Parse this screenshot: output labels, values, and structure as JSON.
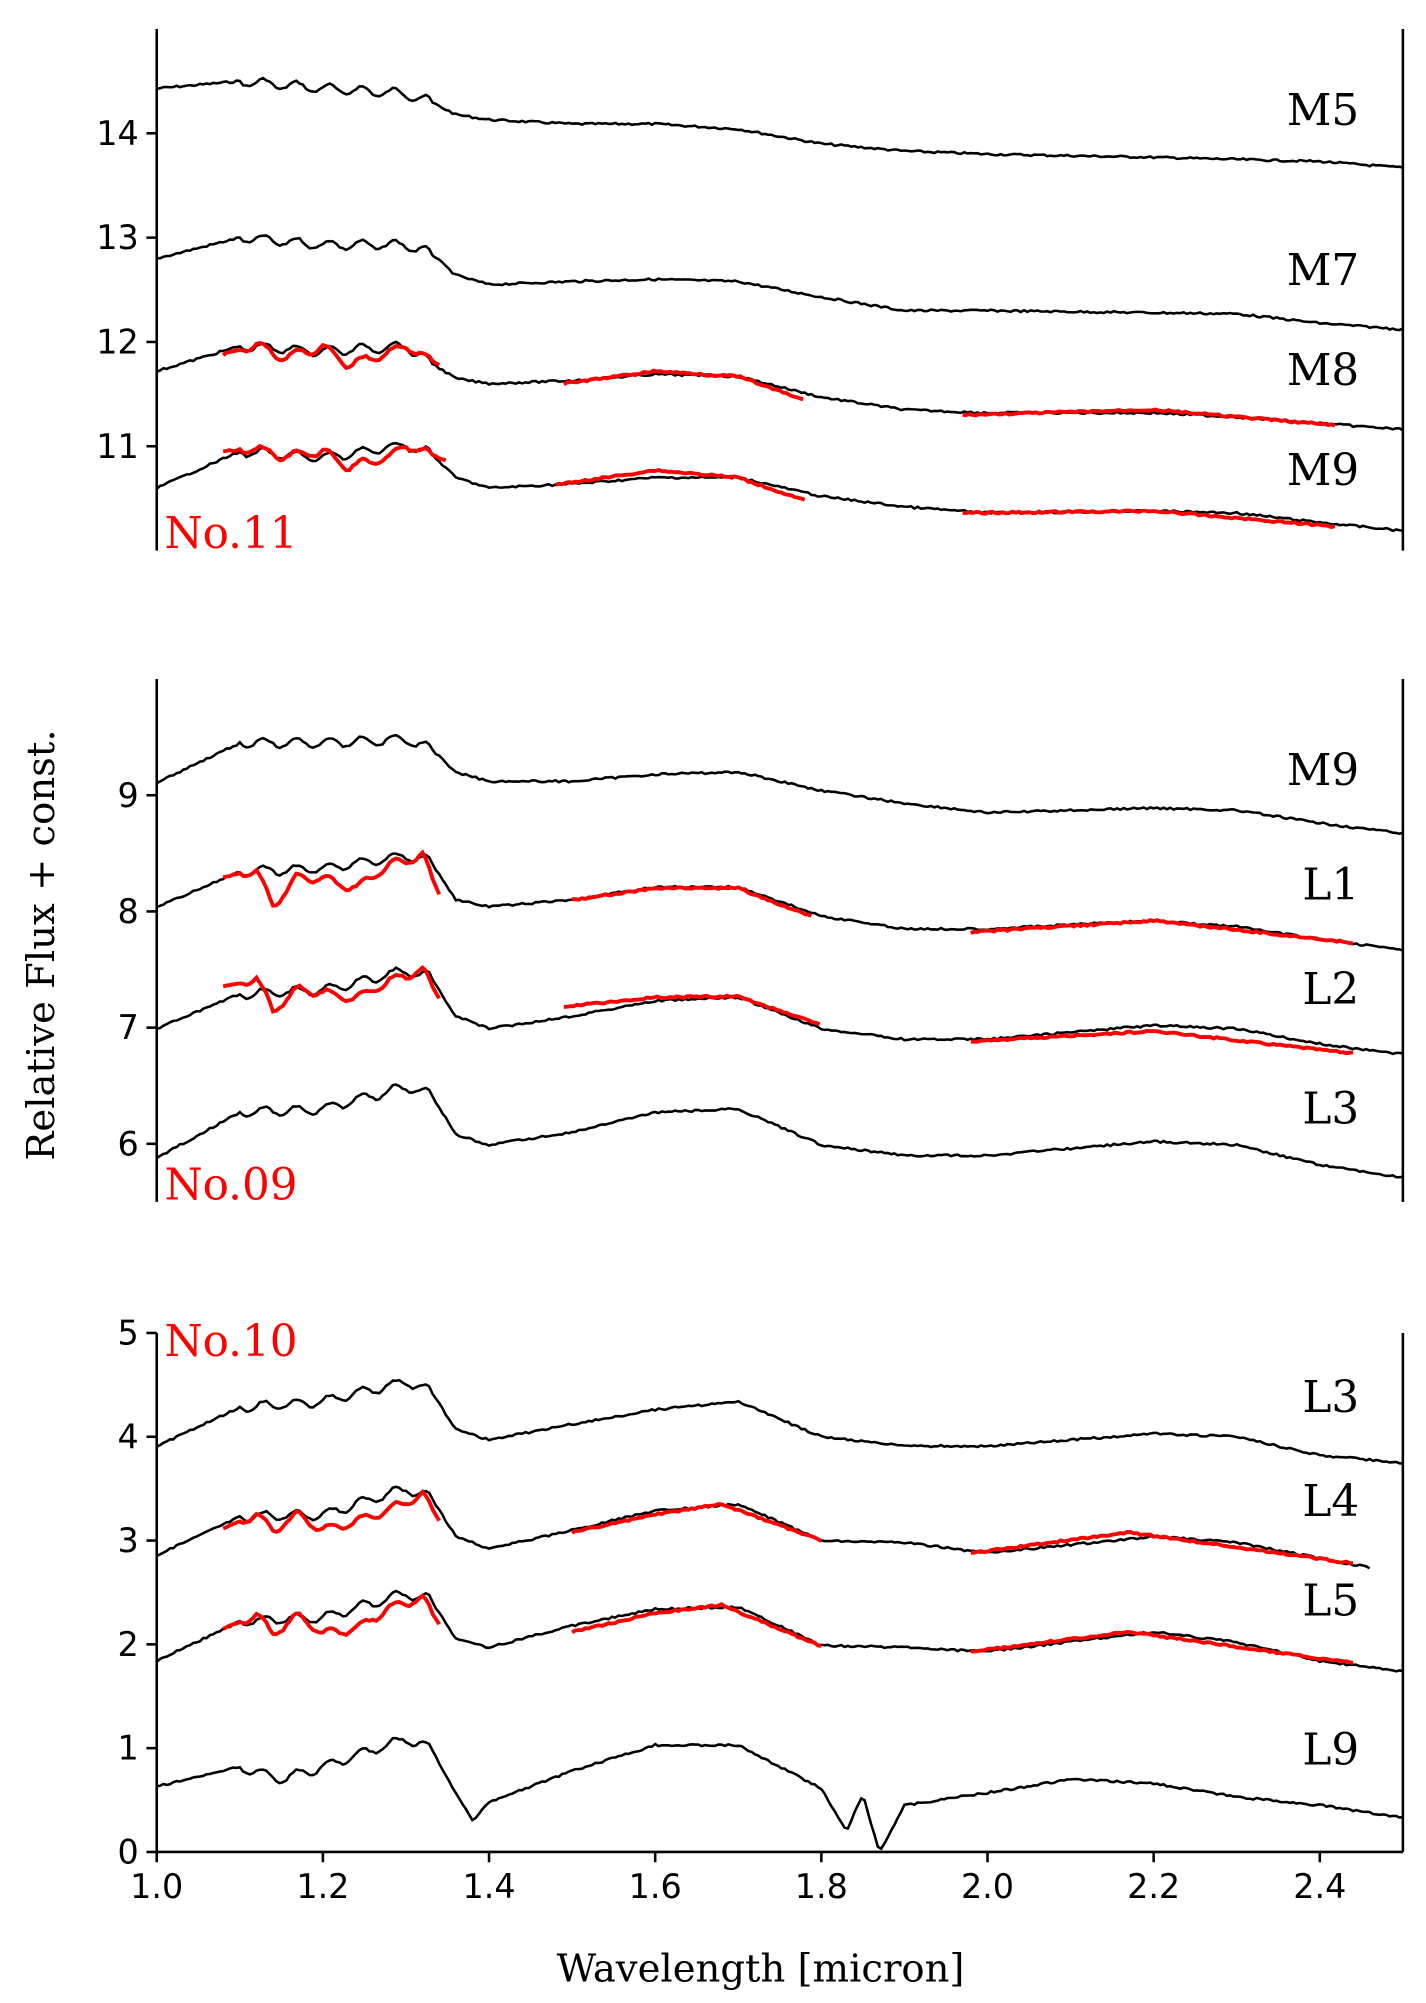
{
  "chart_data": {
    "type": "line",
    "ylabel": "Relative Flux + const.",
    "xlabel": "Wavelength [micron]",
    "xlim": [
      1.0,
      2.5
    ],
    "xticks": [
      "1.0",
      "1.2",
      "1.4",
      "1.6",
      "1.8",
      "2.0",
      "2.2",
      "2.4"
    ],
    "colors": {
      "template": "#000000",
      "object": "#ff0000"
    },
    "grid": false,
    "panels": [
      {
        "object_label": "No.11",
        "ylim": [
          10,
          15
        ],
        "yticks": [
          "11",
          "12",
          "13",
          "14"
        ],
        "templates": [
          {
            "name": "M5",
            "x": [
              1.0,
              1.1,
              1.2,
              1.3,
              1.33,
              1.36,
              1.4,
              1.5,
              1.6,
              1.7,
              1.8,
              1.9,
              2.0,
              2.2,
              2.4,
              2.5
            ],
            "y": [
              14.43,
              14.5,
              14.43,
              14.38,
              14.3,
              14.18,
              14.13,
              14.09,
              14.09,
              14.04,
              13.9,
              13.83,
              13.8,
              13.77,
              13.73,
              13.67
            ]
          },
          {
            "name": "M7",
            "x": [
              1.0,
              1.1,
              1.2,
              1.3,
              1.33,
              1.36,
              1.4,
              1.5,
              1.6,
              1.7,
              1.8,
              1.9,
              2.0,
              2.2,
              2.3,
              2.4,
              2.5
            ],
            "y": [
              12.8,
              13.0,
              12.93,
              12.93,
              12.85,
              12.64,
              12.55,
              12.58,
              12.6,
              12.58,
              12.43,
              12.3,
              12.3,
              12.28,
              12.27,
              12.18,
              12.12
            ]
          },
          {
            "name": "M8",
            "x": [
              1.0,
              1.1,
              1.2,
              1.3,
              1.33,
              1.36,
              1.4,
              1.5,
              1.6,
              1.7,
              1.8,
              1.9,
              2.0,
              2.2,
              2.3,
              2.4,
              2.5
            ],
            "y": [
              11.72,
              11.96,
              11.91,
              11.96,
              11.8,
              11.65,
              11.6,
              11.63,
              11.69,
              11.67,
              11.47,
              11.35,
              11.32,
              11.32,
              11.28,
              11.22,
              11.16
            ]
          },
          {
            "name": "M9",
            "x": [
              1.0,
              1.1,
              1.2,
              1.3,
              1.33,
              1.36,
              1.4,
              1.5,
              1.6,
              1.7,
              1.8,
              1.9,
              2.0,
              2.2,
              2.3,
              2.4,
              2.5
            ],
            "y": [
              10.6,
              10.95,
              10.89,
              11.01,
              10.93,
              10.7,
              10.6,
              10.64,
              10.7,
              10.7,
              10.52,
              10.42,
              10.36,
              10.38,
              10.36,
              10.27,
              10.19
            ]
          }
        ],
        "object": [
          {
            "template": "M8",
            "segments": [
              {
                "x": [
                  1.08,
                  1.12,
                  1.15,
                  1.2,
                  1.23,
                  1.28,
                  1.3,
                  1.34
                ],
                "y": [
                  11.88,
                  11.98,
                  11.85,
                  11.95,
                  11.78,
                  11.9,
                  11.96,
                  11.78
                ]
              },
              {
                "x": [
                  1.49,
                  1.6,
                  1.7,
                  1.78
                ],
                "y": [
                  11.6,
                  11.72,
                  11.67,
                  11.44
                ]
              },
              {
                "x": [
                  1.97,
                  2.2,
                  2.42
                ],
                "y": [
                  11.3,
                  11.35,
                  11.2
                ]
              }
            ]
          },
          {
            "template": "M9",
            "segments": [
              {
                "x": [
                  1.08,
                  1.12,
                  1.15,
                  1.2,
                  1.23,
                  1.28,
                  1.3,
                  1.35
                ],
                "y": [
                  10.95,
                  10.98,
                  10.9,
                  10.95,
                  10.8,
                  10.9,
                  11.01,
                  10.86
                ]
              },
              {
                "x": [
                  1.48,
                  1.6,
                  1.7,
                  1.78
                ],
                "y": [
                  10.63,
                  10.77,
                  10.7,
                  10.48
                ]
              },
              {
                "x": [
                  1.97,
                  2.2,
                  2.42
                ],
                "y": [
                  10.36,
                  10.38,
                  10.23
                ]
              }
            ]
          }
        ]
      },
      {
        "object_label": "No.09",
        "ylim": [
          5.5,
          10
        ],
        "yticks": [
          "6",
          "7",
          "8",
          "9"
        ],
        "templates": [
          {
            "name": "M9",
            "x": [
              1.0,
              1.1,
              1.2,
              1.3,
              1.33,
              1.36,
              1.4,
              1.5,
              1.6,
              1.7,
              1.8,
              1.9,
              2.0,
              2.2,
              2.3,
              2.4,
              2.5
            ],
            "y": [
              9.11,
              9.45,
              9.45,
              9.48,
              9.4,
              9.2,
              9.12,
              9.12,
              9.18,
              9.2,
              9.04,
              8.93,
              8.85,
              8.89,
              8.87,
              8.76,
              8.67
            ]
          },
          {
            "name": "L1",
            "x": [
              1.0,
              1.1,
              1.2,
              1.3,
              1.33,
              1.36,
              1.4,
              1.5,
              1.6,
              1.7,
              1.8,
              1.9,
              2.0,
              2.2,
              2.3,
              2.4,
              2.5
            ],
            "y": [
              8.04,
              8.34,
              8.37,
              8.48,
              8.43,
              8.1,
              8.04,
              8.1,
              8.21,
              8.21,
              7.96,
              7.85,
              7.85,
              7.92,
              7.87,
              7.76,
              7.67
            ]
          },
          {
            "name": "L2",
            "x": [
              1.0,
              1.1,
              1.2,
              1.3,
              1.33,
              1.36,
              1.4,
              1.5,
              1.6,
              1.7,
              1.8,
              1.9,
              2.0,
              2.2,
              2.3,
              2.4,
              2.5
            ],
            "y": [
              6.99,
              7.29,
              7.32,
              7.49,
              7.43,
              7.1,
              6.99,
              7.1,
              7.23,
              7.26,
              6.99,
              6.9,
              6.9,
              7.02,
              6.99,
              6.86,
              6.77
            ]
          },
          {
            "name": "L3",
            "x": [
              1.0,
              1.1,
              1.2,
              1.3,
              1.33,
              1.36,
              1.4,
              1.5,
              1.6,
              1.7,
              1.8,
              1.9,
              2.0,
              2.2,
              2.3,
              2.4,
              2.5
            ],
            "y": [
              5.88,
              6.27,
              6.3,
              6.49,
              6.43,
              6.08,
              5.99,
              6.1,
              6.27,
              6.3,
              5.99,
              5.9,
              5.9,
              6.02,
              5.99,
              5.82,
              5.71
            ]
          }
        ],
        "object": [
          {
            "template": "L1",
            "segments": [
              {
                "x": [
                  1.08,
                  1.12,
                  1.14,
                  1.17,
                  1.2,
                  1.24,
                  1.28,
                  1.32,
                  1.34
                ],
                "y": [
                  8.3,
                  8.35,
                  8.05,
                  8.3,
                  8.28,
                  8.2,
                  8.4,
                  8.48,
                  8.15
                ]
              },
              {
                "x": [
                  1.5,
                  1.6,
                  1.7,
                  1.79
                ],
                "y": [
                  8.1,
                  8.2,
                  8.2,
                  7.95
                ]
              },
              {
                "x": [
                  1.98,
                  2.2,
                  2.44
                ],
                "y": [
                  7.82,
                  7.92,
                  7.73
                ]
              }
            ]
          },
          {
            "template": "L2",
            "segments": [
              {
                "x": [
                  1.08,
                  1.12,
                  1.14,
                  1.17,
                  1.2,
                  1.24,
                  1.28,
                  1.32,
                  1.34
                ],
                "y": [
                  7.35,
                  7.42,
                  7.15,
                  7.33,
                  7.3,
                  7.25,
                  7.4,
                  7.5,
                  7.25
                ]
              },
              {
                "x": [
                  1.49,
                  1.6,
                  1.7,
                  1.8
                ],
                "y": [
                  7.18,
                  7.26,
                  7.27,
                  7.02
                ]
              },
              {
                "x": [
                  1.98,
                  2.2,
                  2.44
                ],
                "y": [
                  6.88,
                  6.97,
                  6.78
                ]
              }
            ]
          }
        ]
      },
      {
        "object_label": "No.10",
        "ylim": [
          0,
          5
        ],
        "yticks": [
          "0",
          "1",
          "2",
          "3",
          "4",
          "5"
        ],
        "templates": [
          {
            "name": "L3",
            "x": [
              1.0,
              1.1,
              1.2,
              1.3,
              1.33,
              1.36,
              1.4,
              1.5,
              1.6,
              1.7,
              1.8,
              1.9,
              2.0,
              2.2,
              2.3,
              2.4,
              2.5
            ],
            "y": [
              3.91,
              4.28,
              4.34,
              4.53,
              4.44,
              4.07,
              3.97,
              4.12,
              4.26,
              4.34,
              4.0,
              3.91,
              3.91,
              4.03,
              4.0,
              3.82,
              3.75
            ]
          },
          {
            "name": "L4",
            "x": [
              1.0,
              1.1,
              1.2,
              1.3,
              1.33,
              1.36,
              1.4,
              1.5,
              1.6,
              1.7,
              1.8,
              1.9,
              2.0,
              2.2,
              2.3,
              2.4,
              2.46
            ],
            "y": [
              2.86,
              3.23,
              3.25,
              3.5,
              3.42,
              3.04,
              2.92,
              3.1,
              3.29,
              3.35,
              3.0,
              2.98,
              2.88,
              3.04,
              2.98,
              2.83,
              2.74
            ]
          },
          {
            "name": "L5",
            "x": [
              1.0,
              1.1,
              1.2,
              1.3,
              1.33,
              1.36,
              1.4,
              1.5,
              1.6,
              1.7,
              1.8,
              1.9,
              2.0,
              2.2,
              2.3,
              2.4,
              2.5
            ],
            "y": [
              1.84,
              2.22,
              2.26,
              2.49,
              2.43,
              2.05,
              1.97,
              2.18,
              2.34,
              2.36,
              1.99,
              1.97,
              1.93,
              2.12,
              2.02,
              1.84,
              1.74
            ]
          },
          {
            "name": "L9",
            "x": [
              1.0,
              1.1,
              1.15,
              1.2,
              1.3,
              1.33,
              1.36,
              1.38,
              1.4,
              1.5,
              1.6,
              1.7,
              1.8,
              1.83,
              1.85,
              1.87,
              1.9,
              2.0,
              2.1,
              2.2,
              2.3,
              2.4,
              2.5
            ],
            "y": [
              0.63,
              0.82,
              0.7,
              0.82,
              1.09,
              1.0,
              0.57,
              0.3,
              0.48,
              0.78,
              1.03,
              1.03,
              0.61,
              0.2,
              0.55,
              0.0,
              0.45,
              0.57,
              0.7,
              0.66,
              0.53,
              0.45,
              0.33
            ]
          }
        ],
        "object": [
          {
            "template": "L4",
            "segments": [
              {
                "x": [
                  1.08,
                  1.12,
                  1.14,
                  1.17,
                  1.2,
                  1.24,
                  1.28,
                  1.32,
                  1.34
                ],
                "y": [
                  3.12,
                  3.25,
                  3.1,
                  3.25,
                  3.1,
                  3.18,
                  3.3,
                  3.45,
                  3.2
                ]
              },
              {
                "x": [
                  1.5,
                  1.6,
                  1.68,
                  1.8
                ],
                "y": [
                  3.08,
                  3.25,
                  3.35,
                  3.0
                ]
              },
              {
                "x": [
                  1.98,
                  2.17,
                  2.44
                ],
                "y": [
                  2.88,
                  3.08,
                  2.78
                ]
              }
            ]
          },
          {
            "template": "L5",
            "segments": [
              {
                "x": [
                  1.08,
                  1.12,
                  1.14,
                  1.17,
                  1.2,
                  1.24,
                  1.28,
                  1.32,
                  1.34
                ],
                "y": [
                  2.15,
                  2.28,
                  2.1,
                  2.28,
                  2.1,
                  2.15,
                  2.35,
                  2.45,
                  2.2
                ]
              },
              {
                "x": [
                  1.5,
                  1.6,
                  1.68,
                  1.8
                ],
                "y": [
                  2.12,
                  2.3,
                  2.38,
                  1.98
                ]
              },
              {
                "x": [
                  1.98,
                  2.17,
                  2.44
                ],
                "y": [
                  1.93,
                  2.12,
                  1.82
                ]
              }
            ]
          }
        ]
      }
    ]
  }
}
